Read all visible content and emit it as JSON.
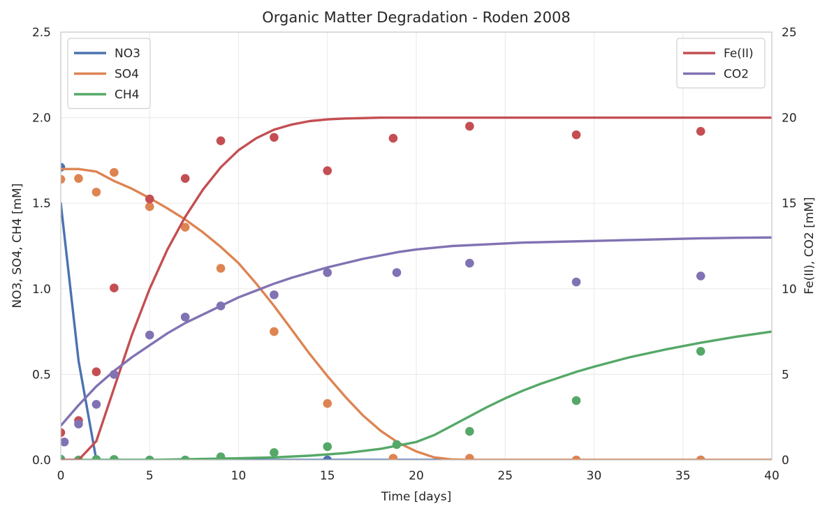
{
  "chart_data": {
    "type": "line",
    "title": "Organic Matter Degradation - Roden 2008",
    "xlabel": "Time [days]",
    "ylabel_left": "NO3, SO4, CH4 [mM]",
    "ylabel_right": "Fe(II), CO2 [mM]",
    "xlim": [
      0,
      40
    ],
    "ylim_left": [
      0,
      2.5
    ],
    "ylim_right": [
      0,
      25
    ],
    "xticks": [
      0,
      5,
      10,
      15,
      20,
      25,
      30,
      35,
      40
    ],
    "xtick_labels": [
      "0",
      "5",
      "10",
      "15",
      "20",
      "25",
      "30",
      "35",
      "40"
    ],
    "yticks_left": [
      0,
      0.5,
      1.0,
      1.5,
      2.0,
      2.5
    ],
    "ytick_labels_left": [
      "0.0",
      "0.5",
      "1.0",
      "1.5",
      "2.0",
      "2.5"
    ],
    "yticks_right": [
      0,
      5,
      10,
      15,
      20,
      25
    ],
    "ytick_labels_right": [
      "0",
      "5",
      "10",
      "15",
      "20",
      "25"
    ],
    "grid": true,
    "legend_left": {
      "placement": "upper-left",
      "entries": [
        "NO3",
        "SO4",
        "CH4"
      ]
    },
    "legend_right": {
      "placement": "upper-right",
      "entries": [
        "Fe(II)",
        "CO2"
      ]
    },
    "series": [
      {
        "name": "NO3",
        "axis": "left",
        "color": "#4c72b0",
        "line": {
          "x": [
            0,
            1,
            2,
            3,
            40
          ],
          "y": [
            1.5,
            0.58,
            0.0,
            0.0,
            0.0
          ]
        },
        "points": {
          "x": [
            0,
            15,
            36
          ],
          "y": [
            1.71,
            0.0,
            0.0
          ]
        }
      },
      {
        "name": "SO4",
        "axis": "left",
        "color": "#dd8452",
        "line": {
          "x": [
            0,
            1,
            2,
            3,
            4,
            5,
            6,
            7,
            8,
            9,
            10,
            11,
            12,
            13,
            14,
            15,
            16,
            17,
            18,
            19,
            20,
            21,
            22,
            23,
            25,
            30,
            35,
            40
          ],
          "y": [
            1.7,
            1.7,
            1.685,
            1.63,
            1.585,
            1.53,
            1.47,
            1.405,
            1.33,
            1.245,
            1.15,
            1.03,
            0.9,
            0.76,
            0.62,
            0.49,
            0.37,
            0.26,
            0.17,
            0.1,
            0.05,
            0.015,
            0.003,
            0.0,
            0.0,
            0.0,
            0.0,
            0.0
          ]
        },
        "points": {
          "x": [
            0,
            1,
            2,
            3,
            5,
            7,
            9,
            12,
            15,
            18.7,
            23,
            29,
            36
          ],
          "y": [
            1.64,
            1.645,
            1.565,
            1.68,
            1.48,
            1.36,
            1.12,
            0.75,
            0.33,
            0.01,
            0.01,
            0.0,
            0.0
          ]
        }
      },
      {
        "name": "CH4",
        "axis": "left",
        "color": "#55a868",
        "line": {
          "x": [
            0,
            5,
            10,
            12,
            14,
            16,
            18,
            20,
            21,
            22,
            23,
            24,
            25,
            26,
            27,
            28,
            29,
            30,
            32,
            34,
            36,
            38,
            40
          ],
          "y": [
            0.0,
            0.0,
            0.01,
            0.015,
            0.025,
            0.04,
            0.065,
            0.105,
            0.145,
            0.2,
            0.255,
            0.31,
            0.36,
            0.405,
            0.445,
            0.48,
            0.515,
            0.545,
            0.6,
            0.645,
            0.685,
            0.72,
            0.75
          ]
        },
        "points": {
          "x": [
            0,
            1,
            2,
            3,
            5,
            7,
            9,
            12,
            15,
            18.9,
            23,
            29,
            36
          ],
          "y": [
            0.005,
            0.0,
            0.003,
            0.003,
            0.0,
            0.0,
            0.018,
            0.043,
            0.078,
            0.09,
            0.167,
            0.347,
            0.635
          ]
        }
      },
      {
        "name": "Fe(II)",
        "axis": "right",
        "color": "#c44e52",
        "line": {
          "x": [
            0,
            1,
            2,
            3,
            4,
            5,
            6,
            7,
            8,
            9,
            10,
            11,
            12,
            13,
            14,
            15,
            16,
            18,
            20,
            25,
            30,
            35,
            40
          ],
          "y": [
            0.0,
            0.0,
            1.1,
            4.2,
            7.3,
            10.0,
            12.3,
            14.2,
            15.8,
            17.1,
            18.1,
            18.8,
            19.3,
            19.6,
            19.8,
            19.9,
            19.95,
            20.0,
            20.0,
            20.0,
            20.0,
            20.0,
            20.0
          ]
        },
        "points": {
          "x": [
            0,
            1,
            2,
            3,
            5,
            7,
            9,
            12,
            15,
            18.7,
            23,
            29,
            36
          ],
          "y": [
            1.6,
            2.3,
            5.15,
            10.05,
            15.25,
            16.45,
            18.65,
            18.85,
            16.9,
            18.8,
            19.5,
            19.0,
            19.2
          ]
        }
      },
      {
        "name": "CO2",
        "axis": "right",
        "color": "#8172b3",
        "line": {
          "x": [
            0,
            1,
            2,
            3,
            4,
            5,
            6,
            7,
            8,
            9,
            10,
            11,
            12,
            13,
            14,
            15,
            16,
            17,
            18,
            19,
            20,
            22,
            24,
            26,
            28,
            30,
            32,
            34,
            36,
            38,
            40
          ],
          "y": [
            2.0,
            3.2,
            4.3,
            5.2,
            6.0,
            6.7,
            7.4,
            8.0,
            8.5,
            9.0,
            9.5,
            9.9,
            10.3,
            10.65,
            10.95,
            11.25,
            11.5,
            11.75,
            11.95,
            12.15,
            12.3,
            12.5,
            12.6,
            12.7,
            12.75,
            12.8,
            12.85,
            12.9,
            12.95,
            12.98,
            13.0
          ]
        },
        "points": {
          "x": [
            0.2,
            1,
            2,
            3,
            5,
            7,
            9,
            12,
            15,
            18.9,
            23,
            29,
            36
          ],
          "y": [
            1.05,
            2.1,
            3.25,
            5.0,
            7.3,
            8.35,
            9.0,
            9.65,
            10.95,
            10.95,
            11.5,
            10.4,
            10.75
          ]
        }
      }
    ]
  }
}
